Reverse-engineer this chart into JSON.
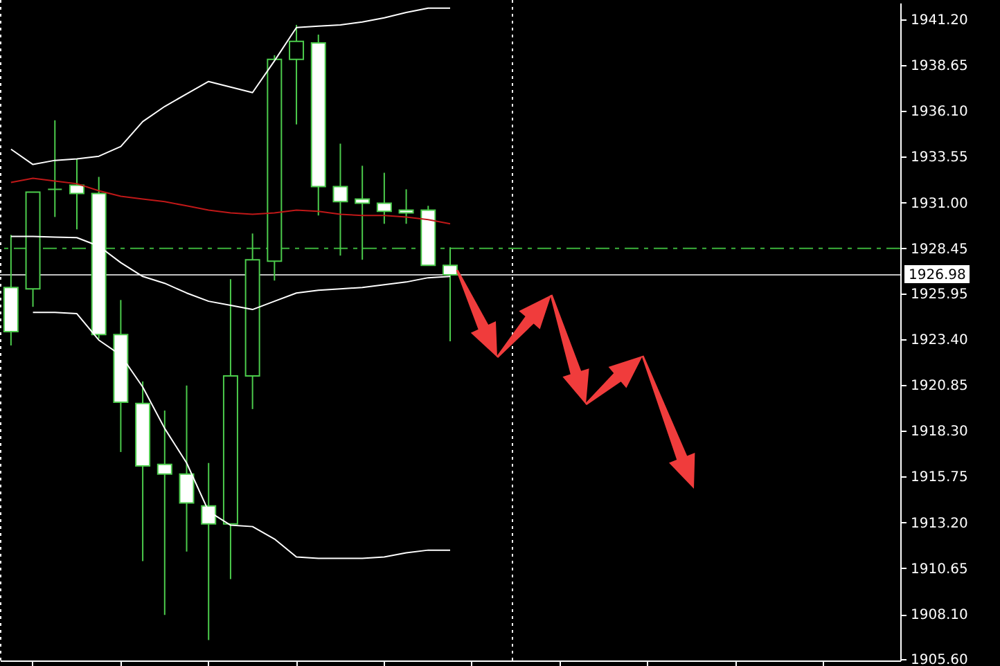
{
  "chart_data": {
    "type": "candlestick",
    "categories": [
      null,
      null,
      null,
      null,
      null,
      null,
      null,
      null,
      null,
      null,
      null,
      null,
      null,
      null,
      null,
      null,
      null,
      null,
      null,
      null,
      null,
      null,
      null,
      null,
      null,
      null,
      null,
      null,
      null,
      null,
      null,
      null,
      null,
      null,
      null,
      null,
      null,
      null,
      null,
      null,
      null
    ],
    "ohlc": [
      [
        1926.28,
        1929.2,
        1923.05,
        1923.82
      ],
      [
        1926.2,
        1931.58,
        1925.2,
        1931.58
      ],
      [
        1931.74,
        1935.58,
        1930.2,
        1931.74
      ],
      [
        1931.97,
        1933.43,
        1929.51,
        1931.51
      ],
      [
        1931.51,
        1932.43,
        1923.43,
        1923.66
      ],
      [
        1923.66,
        1925.58,
        1917.12,
        1919.89
      ],
      [
        1919.82,
        1921.05,
        1911.05,
        1916.35
      ],
      [
        1916.43,
        1919.43,
        1908.05,
        1915.89
      ],
      [
        1915.89,
        1920.82,
        1911.58,
        1914.28
      ],
      [
        1914.12,
        1916.51,
        1906.66,
        1913.12
      ],
      [
        1913.12,
        1926.74,
        1910.05,
        1921.35
      ],
      [
        1921.35,
        1929.28,
        1919.51,
        1927.82
      ],
      [
        1927.74,
        1939.2,
        1926.66,
        1938.97
      ],
      [
        1938.97,
        1940.89,
        1935.35,
        1939.97
      ],
      [
        1939.89,
        1940.35,
        1930.28,
        1931.89
      ],
      [
        1931.89,
        1934.28,
        1928.05,
        1931.05
      ],
      [
        1931.2,
        1933.05,
        1927.82,
        1930.97
      ],
      [
        1930.97,
        1932.66,
        1929.82,
        1930.51
      ],
      [
        1930.58,
        1931.74,
        1929.82,
        1930.43
      ],
      [
        1930.58,
        1930.82,
        1927.51,
        1927.51
      ],
      [
        1927.51,
        1928.51,
        1923.28,
        1926.98
      ],
      null,
      null,
      null,
      null,
      null,
      null,
      null,
      null,
      null,
      null,
      null,
      null,
      null,
      null,
      null,
      null,
      null,
      null,
      null,
      null
    ],
    "color": "#4ccc4c",
    "colors": [
      "#ffffff",
      "#000000",
      "#4ccc4c",
      "#ffffff",
      "#ffffff",
      "#ffffff",
      "#ffffff",
      "#ffffff",
      "#ffffff",
      "#ffffff",
      "#000000",
      "#000000",
      "#000000",
      "#000000",
      "#ffffff",
      "#ffffff",
      "#ffffff",
      "#ffffff",
      "#ffffff",
      "#ffffff",
      "#ffffff",
      null,
      null,
      null,
      null,
      null,
      null,
      null,
      null,
      null,
      null,
      null,
      null,
      null,
      null,
      null,
      null,
      null,
      null,
      null,
      null
    ],
    "series": [
      {
        "type": "line",
        "color": "#ffffff",
        "values": [
          1933.97,
          1933.12,
          1933.35,
          1933.43,
          1933.58,
          1934.12,
          1935.51,
          1936.35,
          1937.05,
          1937.74,
          1937.43,
          1937.12,
          1938.89,
          1940.74,
          1940.82,
          1940.89,
          1941.05,
          1941.28,
          1941.58,
          1941.82,
          1941.82,
          null,
          null,
          null,
          null,
          null,
          null,
          null,
          null,
          null,
          null,
          null,
          null,
          null,
          null,
          null,
          null,
          null,
          null,
          null,
          null
        ]
      },
      {
        "type": "line",
        "color": "#ffffff",
        "values": [
          1929.12,
          1929.12,
          1929.08,
          1929.05,
          1928.58,
          1927.66,
          1926.89,
          1926.51,
          1925.97,
          1925.51,
          1925.28,
          1925.05,
          1925.51,
          1925.97,
          1926.12,
          1926.2,
          1926.28,
          1926.43,
          1926.58,
          1926.82,
          1926.89,
          null,
          null,
          null,
          null,
          null,
          null,
          null,
          null,
          null,
          null,
          null,
          null,
          null,
          null,
          null,
          null,
          null,
          null,
          null,
          null
        ]
      },
      {
        "type": "line",
        "color": "#ffffff",
        "values": [
          null,
          1924.89,
          1924.89,
          1924.82,
          1923.35,
          1922.51,
          1920.74,
          1918.43,
          1916.51,
          1913.82,
          1913.05,
          1912.97,
          1912.28,
          1911.28,
          1911.2,
          1911.2,
          1911.2,
          1911.28,
          1911.51,
          1911.66,
          1911.66,
          null,
          null,
          null,
          null,
          null,
          null,
          null,
          null,
          null,
          null,
          null,
          null,
          null,
          null,
          null,
          null,
          null,
          null,
          null,
          null
        ]
      },
      {
        "type": "line",
        "color": "#c01818",
        "values": [
          1932.12,
          1932.35,
          1932.2,
          1932.05,
          1931.66,
          1931.35,
          1931.2,
          1931.05,
          1930.82,
          1930.58,
          1930.43,
          1930.35,
          1930.43,
          1930.58,
          1930.51,
          1930.35,
          1930.28,
          1930.28,
          1930.2,
          1930.05,
          1929.82,
          null,
          null,
          null,
          null,
          null,
          null,
          null,
          null,
          null,
          null,
          null,
          null,
          null,
          null,
          null,
          null,
          null,
          null,
          null,
          null
        ]
      }
    ],
    "ylim": [
      1905.52,
      1942.12
    ],
    "yticks": [
      {
        "value": 1905.6,
        "label": "1905.60"
      },
      {
        "value": 1908.1,
        "label": "1908.10"
      },
      {
        "value": 1910.65,
        "label": "1910.65"
      },
      {
        "value": 1913.2,
        "label": "1913.20"
      },
      {
        "value": 1915.75,
        "label": "1915.75"
      },
      {
        "value": 1918.3,
        "label": "1918.30"
      },
      {
        "value": 1920.85,
        "label": "1920.85"
      },
      {
        "value": 1923.4,
        "label": "1923.40"
      },
      {
        "value": 1925.95,
        "label": "1925.95"
      },
      {
        "value": 1928.45,
        "label": "1928.45"
      },
      {
        "value": 1931,
        "label": "1931.00"
      },
      {
        "value": 1933.55,
        "label": "1933.55"
      },
      {
        "value": 1936.1,
        "label": "1936.10"
      },
      {
        "value": 1938.65,
        "label": "1938.65"
      },
      {
        "value": 1941.2,
        "label": "1941.20"
      }
    ],
    "tick_labels": "y",
    "ref_lines": [
      {
        "axis": "y",
        "value": 1928.45,
        "color": "#3cb43c",
        "line_style": "dashdot"
      },
      {
        "axis": "y",
        "value": 1926.98,
        "color": "#c0c0c0",
        "line_style": "solid",
        "label": "1926.98"
      }
    ]
  }
}
